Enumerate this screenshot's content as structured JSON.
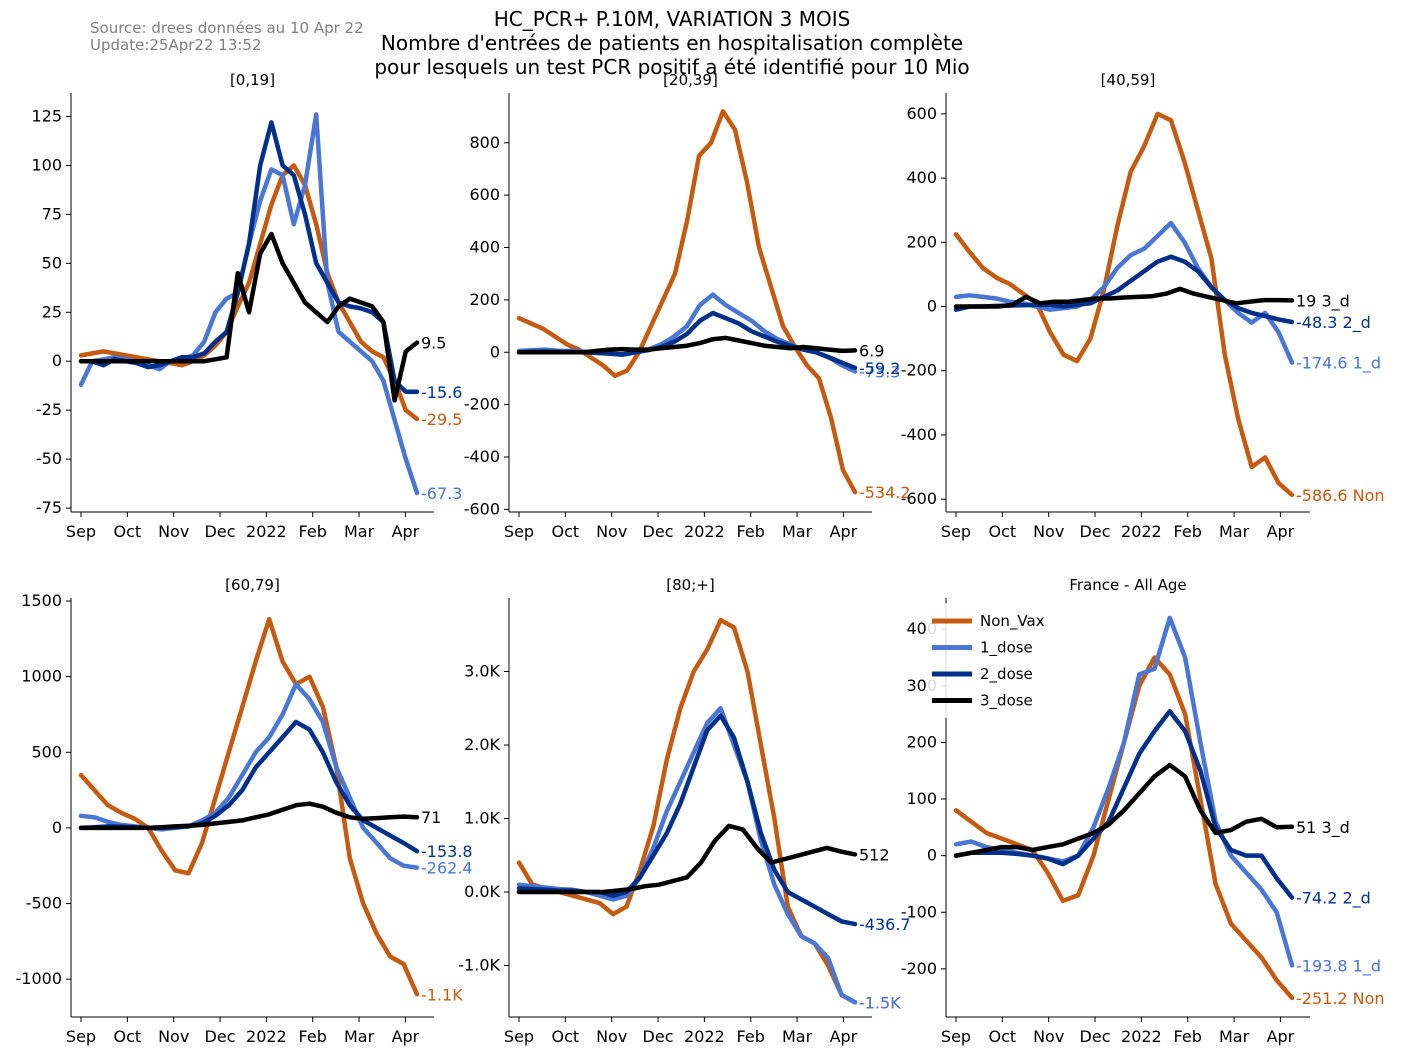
{
  "source": {
    "line1": "Source: drees données au 10 Apr 22",
    "line2": "Update:25Apr22 13:52"
  },
  "title": {
    "line1": "HC_PCR+ P.10M, VARIATION 3 MOIS",
    "line2": "Nombre d'entrées de patients en hospitalisation complète",
    "line3": "pour lesquels un test PCR positif a été identifié pour 10 Mio"
  },
  "colors": {
    "Non_Vax": "#c55a11",
    "1_dose": "#4a76d4",
    "2_dose": "#00308a",
    "3_dose": "#000000"
  },
  "chart_data": [
    {
      "type": "line",
      "title": "[0,19]",
      "x_ticks": [
        "Sep",
        "Oct",
        "Nov",
        "Dec",
        "2022",
        "Feb",
        "Mar",
        "Apr"
      ],
      "y_ticks": [
        -75,
        -50,
        -25,
        0,
        25,
        50,
        75,
        100,
        125
      ],
      "y_tick_labels": [
        "-75",
        "-50",
        "-25",
        "0",
        "25",
        "50",
        "75",
        "100",
        "125"
      ],
      "ylim": [
        -77,
        137
      ],
      "x_end": 7.25,
      "series": [
        {
          "key": "Non_Vax",
          "values": [
            3,
            4,
            5,
            4,
            3,
            2,
            1,
            0,
            -1,
            -2,
            0,
            3,
            8,
            15,
            28,
            40,
            60,
            80,
            95,
            100,
            90,
            70,
            45,
            30,
            20,
            10,
            5,
            2,
            -10,
            -25,
            -29.5
          ],
          "end_label": "-29.5"
        },
        {
          "key": "1_dose",
          "values": [
            -12,
            0,
            1,
            2,
            1,
            0,
            -2,
            -4,
            0,
            1,
            3,
            10,
            25,
            32,
            35,
            60,
            82,
            98,
            95,
            70,
            90,
            126,
            40,
            15,
            10,
            5,
            0,
            -10,
            -30,
            -50,
            -67.3
          ],
          "end_label": "-67.3"
        },
        {
          "key": "2_dose",
          "values": [
            0,
            0,
            -2,
            1,
            0,
            -1,
            -3,
            -2,
            0,
            2,
            2,
            4,
            10,
            15,
            35,
            60,
            100,
            122,
            100,
            95,
            75,
            50,
            40,
            30,
            28,
            27,
            25,
            20,
            -10,
            -15.6,
            -15.6
          ],
          "end_label": "-15.6"
        },
        {
          "key": "3_dose",
          "values": [
            0,
            0,
            0,
            0,
            0,
            0,
            0,
            0,
            0,
            0,
            0,
            0,
            1,
            2,
            45,
            25,
            55,
            65,
            50,
            40,
            30,
            25,
            20,
            28,
            32,
            30,
            28,
            20,
            -20,
            5,
            9.5
          ],
          "end_label": "9.5"
        }
      ]
    },
    {
      "type": "line",
      "title": "[20,39]",
      "x_ticks": [
        "Sep",
        "Oct",
        "Nov",
        "Dec",
        "2022",
        "Feb",
        "Mar",
        "Apr"
      ],
      "y_ticks": [
        -600,
        -400,
        -200,
        0,
        200,
        400,
        600,
        800
      ],
      "y_tick_labels": [
        "-600",
        "-400",
        "-200",
        "0",
        "200",
        "400",
        "600",
        "800"
      ],
      "ylim": [
        -610,
        990
      ],
      "x_end": 7.25,
      "series": [
        {
          "key": "Non_Vax",
          "values": [
            130,
            110,
            90,
            60,
            30,
            10,
            -20,
            -50,
            -90,
            -70,
            0,
            100,
            200,
            300,
            500,
            750,
            800,
            920,
            850,
            650,
            400,
            250,
            100,
            20,
            -50,
            -100,
            -250,
            -450,
            -534.2
          ],
          "end_label": "-534.2"
        },
        {
          "key": "1_dose",
          "values": [
            5,
            8,
            10,
            6,
            5,
            3,
            0,
            -5,
            -10,
            0,
            10,
            30,
            60,
            100,
            180,
            220,
            180,
            150,
            120,
            80,
            50,
            30,
            10,
            0,
            -20,
            -50,
            -73.3
          ],
          "end_label": "-73.3"
        },
        {
          "key": "2_dose",
          "values": [
            0,
            2,
            3,
            2,
            1,
            0,
            -3,
            -5,
            -8,
            0,
            8,
            20,
            40,
            70,
            120,
            150,
            130,
            110,
            80,
            60,
            40,
            25,
            10,
            0,
            -20,
            -40,
            -59.2
          ],
          "end_label": "-59.2"
        },
        {
          "key": "3_dose",
          "values": [
            0,
            0,
            0,
            0,
            0,
            0,
            5,
            10,
            12,
            10,
            10,
            15,
            20,
            25,
            35,
            50,
            55,
            45,
            35,
            25,
            20,
            15,
            20,
            15,
            10,
            5,
            6.9
          ],
          "end_label": "6.9"
        }
      ]
    },
    {
      "type": "line",
      "title": "[40,59]",
      "x_ticks": [
        "Sep",
        "Oct",
        "Nov",
        "Dec",
        "2022",
        "Feb",
        "Mar",
        "Apr"
      ],
      "y_ticks": [
        -600,
        -400,
        -200,
        0,
        200,
        400,
        600
      ],
      "y_tick_labels": [
        "-600",
        "-400",
        "-200",
        "0",
        "200",
        "400",
        "600"
      ],
      "ylim": [
        -640,
        665
      ],
      "x_end": 7.25,
      "series": [
        {
          "key": "Non_Vax",
          "values": [
            225,
            170,
            120,
            90,
            70,
            40,
            10,
            -80,
            -150,
            -170,
            -100,
            50,
            250,
            420,
            500,
            600,
            580,
            450,
            300,
            150,
            -150,
            -350,
            -500,
            -470,
            -550,
            -586.6
          ],
          "end_label": "-586.6 Non"
        },
        {
          "key": "1_dose",
          "values": [
            30,
            35,
            30,
            25,
            15,
            10,
            0,
            -10,
            -5,
            0,
            20,
            60,
            120,
            160,
            180,
            220,
            260,
            200,
            120,
            60,
            20,
            -20,
            -50,
            -20,
            -80,
            -174.6
          ],
          "end_label": "-174.6 1_d"
        },
        {
          "key": "2_dose",
          "values": [
            -10,
            0,
            0,
            2,
            3,
            4,
            5,
            5,
            0,
            5,
            10,
            30,
            50,
            80,
            110,
            140,
            155,
            140,
            110,
            60,
            20,
            -5,
            -20,
            -30,
            -40,
            -48.3
          ],
          "end_label": "-48.3 2_d"
        },
        {
          "key": "3_dose",
          "values": [
            0,
            0,
            0,
            0,
            5,
            30,
            10,
            15,
            15,
            20,
            25,
            25,
            28,
            30,
            32,
            40,
            55,
            40,
            30,
            20,
            10,
            15,
            20,
            20,
            19
          ],
          "end_label": "19 3_d"
        }
      ]
    },
    {
      "type": "line",
      "title": "[60,79]",
      "x_ticks": [
        "Sep",
        "Oct",
        "Nov",
        "Dec",
        "2022",
        "Feb",
        "Mar",
        "Apr"
      ],
      "y_ticks": [
        -1000,
        -500,
        0,
        500,
        1000,
        1500
      ],
      "y_tick_labels": [
        "-1000",
        "-500",
        "0",
        "500",
        "1000",
        "1500"
      ],
      "ylim": [
        -1250,
        1520
      ],
      "x_end": 7.25,
      "series": [
        {
          "key": "Non_Vax",
          "values": [
            350,
            250,
            150,
            100,
            60,
            0,
            -150,
            -280,
            -300,
            -100,
            200,
            500,
            800,
            1100,
            1380,
            1100,
            950,
            1000,
            800,
            400,
            -200,
            -500,
            -700,
            -850,
            -900,
            -1100
          ],
          "end_label": "-1.1K"
        },
        {
          "key": "1_dose",
          "values": [
            80,
            70,
            40,
            20,
            10,
            0,
            -10,
            0,
            10,
            50,
            100,
            200,
            350,
            500,
            600,
            750,
            950,
            850,
            700,
            400,
            200,
            0,
            -100,
            -200,
            -250,
            -262.4
          ],
          "end_label": "-262.4"
        },
        {
          "key": "2_dose",
          "values": [
            0,
            5,
            10,
            8,
            5,
            0,
            0,
            5,
            10,
            30,
            80,
            150,
            250,
            400,
            500,
            600,
            700,
            650,
            500,
            300,
            150,
            50,
            0,
            -50,
            -100,
            -153.8
          ],
          "end_label": "-153.8"
        },
        {
          "key": "3_dose",
          "values": [
            0,
            0,
            0,
            0,
            0,
            0,
            5,
            10,
            15,
            20,
            30,
            40,
            50,
            70,
            90,
            120,
            150,
            160,
            140,
            100,
            70,
            60,
            65,
            70,
            75,
            71
          ],
          "end_label": "71"
        }
      ]
    },
    {
      "type": "line",
      "title": "[80;+]",
      "x_ticks": [
        "Sep",
        "Oct",
        "Nov",
        "Dec",
        "2022",
        "Feb",
        "Mar",
        "Apr"
      ],
      "y_ticks": [
        -1000,
        0,
        1000,
        2000,
        3000
      ],
      "y_tick_labels": [
        "-1.0K",
        "0.0K",
        "1.0K",
        "2.0K",
        "3.0K"
      ],
      "ylim": [
        -1700,
        4000
      ],
      "x_end": 7.25,
      "series": [
        {
          "key": "Non_Vax",
          "values": [
            400,
            100,
            50,
            0,
            -50,
            -100,
            -150,
            -300,
            -200,
            300,
            900,
            1800,
            2500,
            3000,
            3300,
            3700,
            3600,
            3000,
            2000,
            1000,
            -200,
            -600,
            -700,
            -1000,
            -1400,
            -1500
          ],
          "end_label": "-1.5K"
        },
        {
          "key": "1_dose",
          "values": [
            100,
            80,
            60,
            40,
            30,
            0,
            -50,
            -100,
            -50,
            200,
            600,
            1100,
            1500,
            1900,
            2300,
            2500,
            2000,
            1500,
            700,
            100,
            -300,
            -600,
            -700,
            -900,
            -1400,
            -1500
          ],
          "end_label": "-1.5K"
        },
        {
          "key": "2_dose",
          "values": [
            50,
            40,
            30,
            20,
            20,
            0,
            0,
            -50,
            0,
            200,
            500,
            800,
            1200,
            1700,
            2200,
            2400,
            2100,
            1500,
            800,
            300,
            0,
            -100,
            -200,
            -300,
            -400,
            -436.7
          ],
          "end_label": "-436.7"
        },
        {
          "key": "3_dose",
          "values": [
            0,
            0,
            0,
            0,
            0,
            0,
            0,
            20,
            40,
            80,
            100,
            150,
            200,
            400,
            700,
            900,
            850,
            600,
            400,
            450,
            500,
            550,
            600,
            550,
            512
          ],
          "end_label": "512"
        }
      ]
    },
    {
      "type": "line",
      "title": "France - All Age",
      "x_ticks": [
        "Sep",
        "Oct",
        "Nov",
        "Dec",
        "2022",
        "Feb",
        "Mar",
        "Apr"
      ],
      "y_ticks": [
        -200,
        -100,
        0,
        100,
        200,
        300,
        400
      ],
      "y_tick_labels": [
        "-200",
        "-100",
        "0",
        "100",
        "200",
        "300",
        "400"
      ],
      "ylim": [
        -285,
        455
      ],
      "x_end": 7.25,
      "legend": [
        "Non_Vax",
        "1_dose",
        "2_dose",
        "3_dose"
      ],
      "series": [
        {
          "key": "Non_Vax",
          "values": [
            80,
            60,
            40,
            30,
            20,
            10,
            -30,
            -80,
            -70,
            0,
            100,
            200,
            300,
            350,
            320,
            250,
            100,
            -50,
            -120,
            -150,
            -180,
            -220,
            -251.2
          ],
          "end_label": "-251.2 Non"
        },
        {
          "key": "1_dose",
          "values": [
            20,
            25,
            15,
            10,
            5,
            0,
            -5,
            -10,
            0,
            50,
            120,
            200,
            320,
            330,
            420,
            350,
            200,
            60,
            0,
            -30,
            -60,
            -100,
            -193.8
          ],
          "end_label": "-193.8 1_d"
        },
        {
          "key": "2_dose",
          "values": [
            0,
            5,
            5,
            5,
            3,
            0,
            -5,
            -15,
            0,
            30,
            60,
            120,
            180,
            220,
            255,
            220,
            150,
            50,
            10,
            0,
            0,
            -40,
            -74.2
          ],
          "end_label": "-74.2 2_d"
        },
        {
          "key": "3_dose",
          "values": [
            0,
            5,
            10,
            15,
            15,
            10,
            15,
            20,
            30,
            40,
            55,
            80,
            110,
            140,
            160,
            140,
            80,
            40,
            45,
            60,
            65,
            50,
            51
          ],
          "end_label": "51 3_d"
        }
      ]
    }
  ]
}
